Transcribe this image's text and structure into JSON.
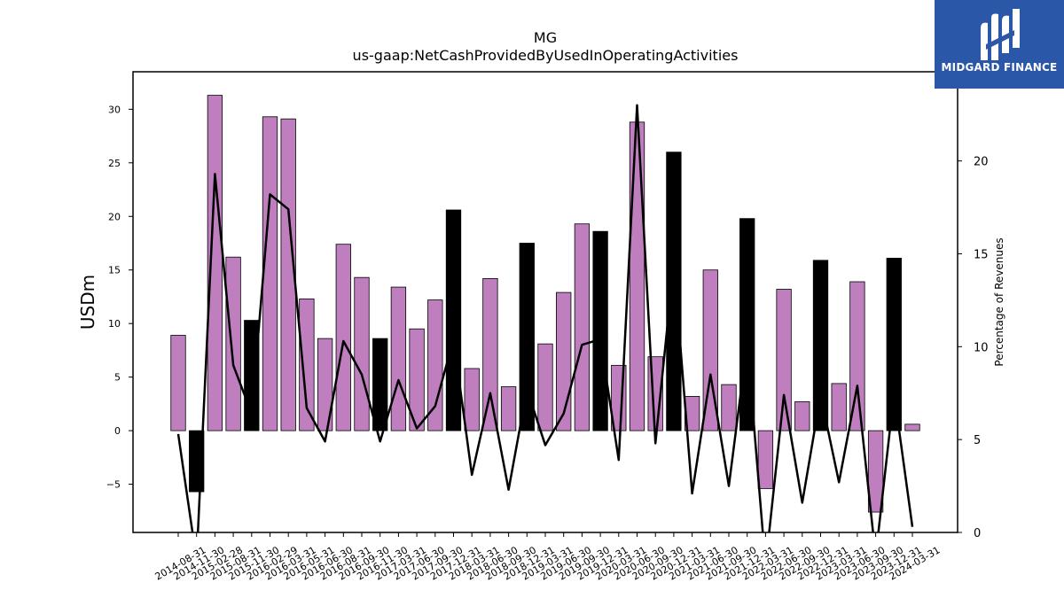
{
  "logo": {
    "text": "MIDGARD FINANCE",
    "icon": "midgard-logo-icon",
    "bg": "#2a57a8"
  },
  "chart_data": {
    "type": "bar",
    "title": "MG",
    "subtitle": "us-gaap:NetCashProvidedByUsedInOperatingActivities",
    "ylabel": "USDm",
    "y2label": "Percentage of Revenues",
    "ylim": [
      -9.5,
      33.5
    ],
    "y2lim": [
      0,
      24.8
    ],
    "yticks": [
      -5,
      0,
      5,
      10,
      15,
      20,
      25,
      30
    ],
    "y2ticks": [
      0,
      5,
      10,
      15,
      20
    ],
    "colors": {
      "quarter": "#bf7fbf",
      "annual": "#000000",
      "line": "#000000"
    },
    "categories": [
      "2014-08-31",
      "2014-11-30",
      "2015-02-28",
      "2015-08-31",
      "2015-11-30",
      "2016-02-29",
      "2016-03-31",
      "2016-05-31",
      "2016-06-30",
      "2016-08-31",
      "2016-09-30",
      "2016-11-30",
      "2017-03-31",
      "2017-06-30",
      "2017-09-30",
      "2017-12-31",
      "2018-03-31",
      "2018-06-30",
      "2018-09-30",
      "2018-12-31",
      "2019-03-31",
      "2019-06-30",
      "2019-09-30",
      "2019-12-31",
      "2020-03-31",
      "2020-06-30",
      "2020-09-30",
      "2020-12-31",
      "2021-03-31",
      "2021-06-30",
      "2021-09-30",
      "2021-12-31",
      "2022-03-31",
      "2022-06-30",
      "2022-09-30",
      "2022-12-31",
      "2023-03-31",
      "2023-06-30",
      "2023-09-30",
      "2023-12-31",
      "2024-03-31"
    ],
    "series": [
      {
        "values": [
          8.9,
          -5.7,
          31.3,
          16.2,
          10.3,
          29.3,
          29.1,
          12.3,
          8.6,
          17.4,
          14.3,
          8.6,
          13.4,
          9.5,
          12.2,
          20.6,
          5.8,
          14.2,
          4.1,
          17.5,
          8.1,
          12.9,
          19.3,
          18.6,
          6.1,
          28.8,
          6.9,
          26.0,
          3.2,
          15.0,
          4.3,
          19.8,
          -5.4,
          13.2,
          2.7,
          15.9,
          4.4,
          13.9,
          -7.6,
          16.1,
          0.6
        ],
        "annual": [
          false,
          true,
          false,
          false,
          true,
          false,
          false,
          false,
          false,
          false,
          false,
          true,
          false,
          false,
          false,
          true,
          false,
          false,
          false,
          true,
          false,
          false,
          false,
          true,
          false,
          false,
          false,
          true,
          false,
          false,
          false,
          true,
          false,
          false,
          false,
          true,
          false,
          false,
          false,
          true,
          false
        ]
      },
      {
        "values": [
          5.3,
          -1.5,
          19.3,
          9.0,
          6.4,
          18.2,
          17.4,
          6.7,
          4.9,
          10.3,
          8.5,
          4.9,
          8.2,
          5.6,
          6.8,
          10.4,
          3.1,
          7.5,
          2.3,
          7.7,
          4.7,
          6.4,
          10.1,
          10.4,
          3.9,
          23.0,
          4.8,
          14.5,
          2.1,
          8.5,
          2.5,
          10.2,
          -1.8,
          7.4,
          1.6,
          7.4,
          2.7,
          7.9,
          -1.3,
          7.5,
          0.3
        ]
      }
    ]
  }
}
